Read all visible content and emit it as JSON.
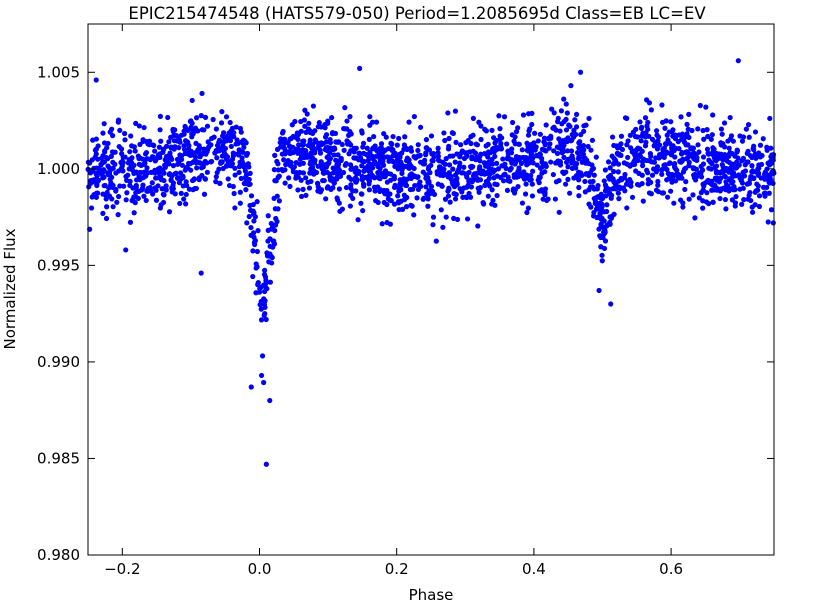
{
  "chart_data": {
    "type": "scatter",
    "title": "EPIC215474548 (HATS579-050)  Period=1.2085695d  Class=EB  LC=EV",
    "xlabel": "Phase",
    "ylabel": "Normalized Flux",
    "xlim": [
      -0.25,
      0.75
    ],
    "ylim": [
      0.98,
      1.0075
    ],
    "x_ticks": [
      -0.2,
      0.0,
      0.2,
      0.4,
      0.6
    ],
    "x_tick_labels": [
      "−0.2",
      "0.0",
      "0.2",
      "0.4",
      "0.6"
    ],
    "y_ticks": [
      0.98,
      0.985,
      0.99,
      0.995,
      1.0,
      1.005
    ],
    "y_tick_labels": [
      "0.980",
      "0.985",
      "0.990",
      "0.995",
      "1.000",
      "1.005"
    ],
    "grid": false,
    "legend": "none",
    "marker_color": "#0000ff",
    "series": [
      {
        "lightcurve_model": {
          "baseline": 1.0002,
          "noise_sigma": 0.0011,
          "n_points": 2400,
          "primary_eclipse": {
            "phase_center": 0.005,
            "depth": 0.0085,
            "half_width": 0.035
          },
          "secondary_eclipse": {
            "phase_center": 0.5,
            "depth": 0.0042,
            "half_width": 0.04
          },
          "ellipsoidal_amplitude": 0.0012
        },
        "notable_points": [
          {
            "x": 0.01,
            "y": 0.9847
          },
          {
            "x": 0.015,
            "y": 0.988
          },
          {
            "x": -0.012,
            "y": 0.9887
          },
          {
            "x": 0.003,
            "y": 0.9893
          },
          {
            "x": 0.698,
            "y": 1.0056
          },
          {
            "x": -0.238,
            "y": 1.0046
          },
          {
            "x": 0.146,
            "y": 1.0052
          },
          {
            "x": 0.468,
            "y": 1.005
          },
          {
            "x": 0.512,
            "y": 0.993
          },
          {
            "x": 0.495,
            "y": 0.9937
          },
          {
            "x": 0.749,
            "y": 0.9972
          },
          {
            "x": -0.195,
            "y": 0.9958
          },
          {
            "x": -0.085,
            "y": 0.9946
          }
        ]
      }
    ]
  }
}
